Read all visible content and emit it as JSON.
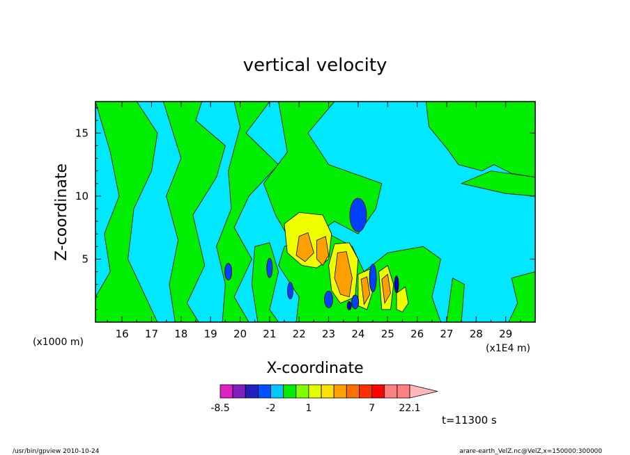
{
  "chart_data": {
    "type": "heatmap",
    "title": "vertical velocity",
    "xlabel": "X-coordinate",
    "ylabel": "Z-coordinate",
    "x_unit_left": "(x1000 m)",
    "x_unit_right": "(x1E4 m)",
    "xlim": [
      15.1,
      30.0
    ],
    "ylim": [
      0.0,
      17.5
    ],
    "x_ticks": [
      "16",
      "17",
      "18",
      "19",
      "20",
      "21",
      "22",
      "23",
      "24",
      "25",
      "26",
      "27",
      "28",
      "29"
    ],
    "x_tick_values": [
      16,
      17,
      18,
      19,
      20,
      21,
      22,
      23,
      24,
      25,
      26,
      27,
      28,
      29
    ],
    "y_ticks": [
      "5",
      "10",
      "15"
    ],
    "y_tick_values": [
      5,
      10,
      15
    ],
    "time_label": "t=11300 s",
    "colorbar": {
      "tick_labels": [
        "-8.5",
        "-2",
        "1",
        "7",
        "22.1"
      ],
      "tick_levels": [
        -8.5,
        -2,
        1,
        7,
        22.1
      ],
      "levels": [
        -8.5,
        -6.5,
        -4.5,
        -3,
        -2,
        -1,
        0,
        1,
        2,
        3,
        4,
        5,
        7,
        10,
        13,
        16,
        22.1
      ],
      "colors": [
        "#e020c0",
        "#8020c0",
        "#2020c0",
        "#0050ff",
        "#00c8ff",
        "#00ee00",
        "#80ff00",
        "#e0ff00",
        "#ffe000",
        "#ffa000",
        "#ff7000",
        "#ff3000",
        "#ff0000",
        "#ff8080",
        "#ff8080",
        "#ffb8b8"
      ]
    },
    "regions": [
      {
        "level": 0,
        "note": "background light"
      },
      {
        "level": 1,
        "shape": "green bands and blobs"
      },
      {
        "level": 2,
        "shape": "yellow updraft cores"
      },
      {
        "level": 3,
        "shape": "orange updraft cores"
      },
      {
        "level": -1,
        "shape": "blue downdraft cores"
      }
    ]
  },
  "footer": {
    "left": "/usr/bin/gpview   2010-10-24",
    "right": "arare-earth_VelZ.nc@VelZ,x=150000:300000"
  }
}
